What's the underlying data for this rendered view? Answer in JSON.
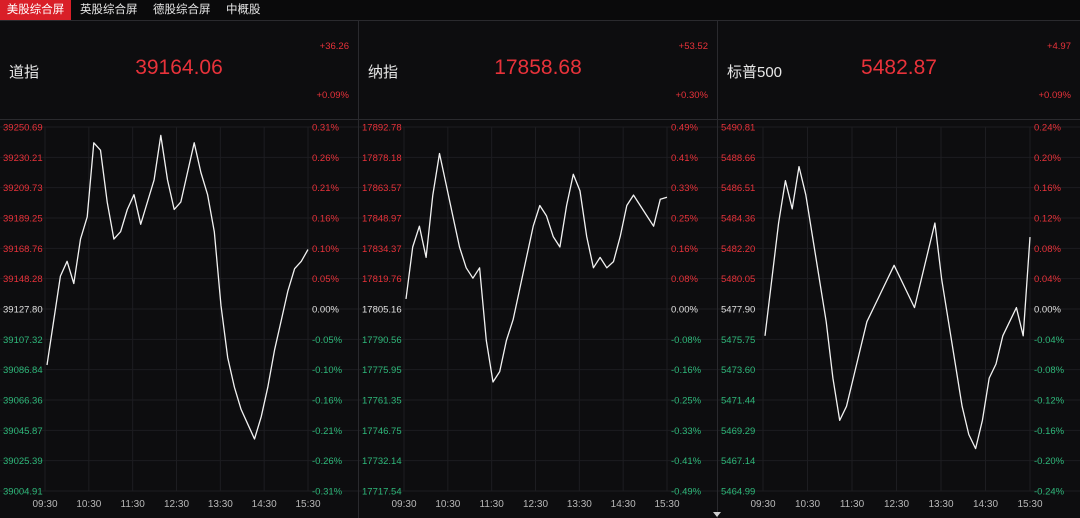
{
  "tabs": [
    {
      "label": "美股综合屏",
      "active": true
    },
    {
      "label": "英股综合屏",
      "active": false
    },
    {
      "label": "德股综合屏",
      "active": false
    },
    {
      "label": "中概股",
      "active": false
    }
  ],
  "colors": {
    "up": "#e8323a",
    "down": "#2eb87a",
    "flat": "#e0e0e0",
    "line": "#f2f2f2",
    "accent": "#d91f28"
  },
  "panels": [
    {
      "name": "道指",
      "price": "39164.06",
      "change": "+36.26",
      "change_pct": "+0.09%",
      "left_labels": [
        "39250.69",
        "39230.21",
        "39209.73",
        "39189.25",
        "39168.76",
        "39148.28",
        "39127.80",
        "39107.32",
        "39086.84",
        "39066.36",
        "39045.87",
        "39025.39",
        "39004.91"
      ],
      "right_labels": [
        "0.31%",
        "0.26%",
        "0.21%",
        "0.16%",
        "0.10%",
        "0.05%",
        "0.00%",
        "-0.05%",
        "-0.10%",
        "-0.16%",
        "-0.21%",
        "-0.26%",
        "-0.31%"
      ],
      "time_labels": [
        "09:30",
        "10:30",
        "11:30",
        "12:30",
        "13:30",
        "14:30",
        "15:30"
      ],
      "chart_data": {
        "type": "line",
        "ylim": [
          39004.91,
          39250.69
        ],
        "y": [
          39090,
          39120,
          39150,
          39160,
          39145,
          39175,
          39190,
          39240,
          39235,
          39200,
          39175,
          39180,
          39195,
          39205,
          39185,
          39200,
          39215,
          39245,
          39215,
          39195,
          39200,
          39220,
          39240,
          39220,
          39205,
          39180,
          39130,
          39095,
          39075,
          39060,
          39050,
          39040,
          39055,
          39075,
          39100,
          39120,
          39140,
          39155,
          39160,
          39168
        ]
      }
    },
    {
      "name": "纳指",
      "price": "17858.68",
      "change": "+53.52",
      "change_pct": "+0.30%",
      "left_labels": [
        "17892.78",
        "17878.18",
        "17863.57",
        "17848.97",
        "17834.37",
        "17819.76",
        "17805.16",
        "17790.56",
        "17775.95",
        "17761.35",
        "17746.75",
        "17732.14",
        "17717.54"
      ],
      "right_labels": [
        "0.49%",
        "0.41%",
        "0.33%",
        "0.25%",
        "0.16%",
        "0.08%",
        "0.00%",
        "-0.08%",
        "-0.16%",
        "-0.25%",
        "-0.33%",
        "-0.41%",
        "-0.49%"
      ],
      "time_labels": [
        "09:30",
        "10:30",
        "11:30",
        "12:30",
        "13:30",
        "14:30",
        "15:30"
      ],
      "chart_data": {
        "type": "line",
        "ylim": [
          17717.54,
          17892.78
        ],
        "y": [
          17810,
          17835,
          17845,
          17830,
          17860,
          17880,
          17865,
          17850,
          17835,
          17825,
          17820,
          17825,
          17790,
          17770,
          17775,
          17790,
          17800,
          17815,
          17830,
          17845,
          17855,
          17850,
          17840,
          17835,
          17855,
          17870,
          17862,
          17840,
          17825,
          17830,
          17825,
          17828,
          17840,
          17855,
          17860,
          17855,
          17850,
          17845,
          17858,
          17859
        ]
      }
    },
    {
      "name": "标普500",
      "price": "5482.87",
      "change": "+4.97",
      "change_pct": "+0.09%",
      "left_labels": [
        "5490.81",
        "5488.66",
        "5486.51",
        "5484.36",
        "5482.20",
        "5480.05",
        "5477.90",
        "5475.75",
        "5473.60",
        "5471.44",
        "5469.29",
        "5467.14",
        "5464.99"
      ],
      "right_labels": [
        "0.24%",
        "0.20%",
        "0.16%",
        "0.12%",
        "0.08%",
        "0.04%",
        "0.00%",
        "-0.04%",
        "-0.08%",
        "-0.12%",
        "-0.16%",
        "-0.20%",
        "-0.24%"
      ],
      "time_labels": [
        "09:30",
        "10:30",
        "11:30",
        "12:30",
        "13:30",
        "14:30",
        "15:30"
      ],
      "chart_data": {
        "type": "line",
        "ylim": [
          5464.99,
          5490.81
        ],
        "y": [
          5476,
          5480,
          5484,
          5487,
          5485,
          5488,
          5486,
          5483,
          5480,
          5477,
          5473,
          5470,
          5471,
          5473,
          5475,
          5477,
          5478,
          5479,
          5480,
          5481,
          5480,
          5479,
          5478,
          5480,
          5482,
          5484,
          5480,
          5477,
          5474,
          5471,
          5469,
          5468,
          5470,
          5473,
          5474,
          5476,
          5477,
          5478,
          5476,
          5483
        ]
      }
    }
  ]
}
